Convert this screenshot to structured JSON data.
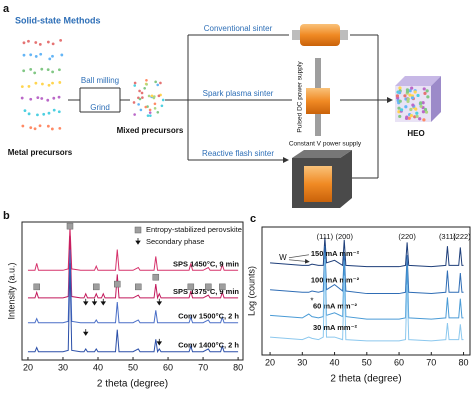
{
  "diagram": {
    "label": "a",
    "title": "Solid-state Methods",
    "metal_precursors": "Metal precursors",
    "ball_milling": "Ball milling",
    "grind": "Grind",
    "mixed_precursors": "Mixed precursors",
    "conventional": "Conventional sinter",
    "spark": "Spark plasma sinter",
    "reactive": "Reactive flash sinter",
    "pulsed_dc": "Pulsed DC power supply",
    "constant_v": "Constant V power supply",
    "product": "HEO"
  },
  "chart_data": [
    {
      "type": "line",
      "panel": "b",
      "x_label": "2 theta (degree)",
      "y_label": "Intensity (a.u.)",
      "xlim": [
        18.3,
        81.4
      ],
      "xticks": [
        20,
        30,
        40,
        50,
        60,
        70,
        80
      ],
      "ylim": [
        0,
        100
      ],
      "x": [
        20,
        22,
        22.5,
        23,
        30,
        31.5,
        32,
        32.5,
        35,
        36,
        36.5,
        37,
        39,
        39.5,
        40,
        41,
        41.5,
        42,
        45,
        45.5,
        46,
        50,
        51.5,
        52,
        56,
        56.5,
        57,
        57.5,
        58,
        60,
        66,
        66.5,
        67,
        70,
        71.5,
        72,
        75,
        75.5,
        76,
        80
      ],
      "series": [
        {
          "name": "SPS 1450°C, 9 min",
          "color": "#d6336c",
          "values": [
            65,
            65,
            70,
            65,
            65,
            66,
            97,
            66,
            65,
            65,
            65,
            65,
            65,
            68,
            65,
            65,
            65,
            65,
            65,
            80,
            65,
            65,
            67,
            65,
            65,
            75,
            65,
            65,
            65,
            65,
            65,
            70,
            65,
            65,
            67,
            65,
            65,
            69,
            65,
            65
          ]
        },
        {
          "name": "SPS 1375°C, 9 min",
          "color": "#c2185b",
          "values": [
            45,
            45,
            49,
            45,
            45,
            46,
            90,
            46,
            45,
            45,
            48,
            45,
            45,
            48,
            45,
            45,
            48,
            45,
            45,
            62,
            45,
            45,
            47,
            45,
            45,
            55,
            45,
            48,
            45,
            45,
            45,
            50,
            45,
            45,
            47,
            45,
            45,
            49,
            45,
            45
          ]
        },
        {
          "name": "Conv 1500°C, 2 h",
          "color": "#4a6fc7",
          "values": [
            27,
            27,
            30,
            27,
            27,
            28,
            80,
            28,
            27,
            27,
            27,
            27,
            27,
            29,
            27,
            27,
            27,
            27,
            27,
            42,
            27,
            27,
            29,
            27,
            27,
            36,
            27,
            27,
            27,
            27,
            27,
            31,
            27,
            27,
            29,
            27,
            27,
            31,
            27,
            27
          ]
        },
        {
          "name": "Conv 1400°C, 2 h",
          "color": "#2b4fa8",
          "values": [
            6,
            6,
            9,
            6,
            6,
            7,
            70,
            7,
            6,
            6,
            8,
            6,
            6,
            8,
            6,
            6,
            6,
            6,
            6,
            22,
            6,
            6,
            8,
            6,
            6,
            15,
            6,
            8,
            6,
            6,
            6,
            10,
            6,
            6,
            8,
            6,
            6,
            10,
            6,
            6
          ]
        }
      ],
      "marker_sets": [
        {
          "name": "Entropy-stabilized perovskite",
          "shape": "square",
          "color": "#9e9e9e",
          "points": [
            {
              "x": 22.5,
              "y": 53
            },
            {
              "x": 32,
              "y": 97
            },
            {
              "x": 39.5,
              "y": 53
            },
            {
              "x": 45.5,
              "y": 55
            },
            {
              "x": 51.5,
              "y": 53
            },
            {
              "x": 56.5,
              "y": 60
            },
            {
              "x": 66.5,
              "y": 53
            },
            {
              "x": 71.5,
              "y": 53
            },
            {
              "x": 75.5,
              "y": 53
            }
          ]
        },
        {
          "name": "Secondary phase",
          "shape": "arrow",
          "color": "#111111",
          "points": [
            {
              "x": 36.5,
              "y": 40
            },
            {
              "x": 39,
              "y": 40
            },
            {
              "x": 41.5,
              "y": 40
            },
            {
              "x": 57.5,
              "y": 40
            },
            {
              "x": 36.5,
              "y": 18
            },
            {
              "x": 57.5,
              "y": 11
            }
          ]
        }
      ]
    },
    {
      "type": "line",
      "panel": "c",
      "x_label": "2 theta (degree)",
      "y_label": "Log (counts)",
      "xlim": [
        17.5,
        82
      ],
      "xticks": [
        20,
        30,
        40,
        50,
        60,
        70,
        80
      ],
      "ylim": [
        0,
        100
      ],
      "x": [
        20,
        25,
        30,
        32,
        33,
        35,
        36.5,
        37,
        37.5,
        40,
        42.5,
        43,
        43.5,
        50,
        55,
        60,
        62,
        62.5,
        63,
        70,
        74.5,
        75,
        75.5,
        78.5,
        79,
        79.5,
        80
      ],
      "series": [
        {
          "name": "150 mA mm⁻²",
          "color": "#1f3f7a",
          "values": [
            72,
            71,
            70,
            70,
            71,
            70,
            70,
            92,
            72,
            74,
            70,
            90,
            70,
            69,
            69,
            69,
            70,
            88,
            70,
            69,
            70,
            85,
            70,
            70,
            84,
            70,
            70
          ]
        },
        {
          "name": "100 mA mm⁻²",
          "color": "#2f6db5",
          "values": [
            51,
            50,
            49,
            49,
            50,
            49,
            50,
            85,
            51,
            55,
            50,
            80,
            50,
            48,
            48,
            48,
            49,
            78,
            49,
            48,
            49,
            66,
            49,
            49,
            64,
            49,
            49
          ]
        },
        {
          "name": "60 mA mm⁻²",
          "color": "#4a9bd6",
          "values": [
            31,
            30,
            29,
            32,
            30,
            29,
            30,
            80,
            31,
            33,
            30,
            74,
            30,
            28,
            28,
            28,
            29,
            70,
            29,
            28,
            29,
            45,
            29,
            29,
            44,
            29,
            29
          ]
        },
        {
          "name": "30 mA mm⁻²",
          "color": "#8cc8ee",
          "values": [
            14,
            13,
            12,
            14,
            13,
            12,
            14,
            75,
            14,
            14,
            12,
            62,
            12,
            11,
            11,
            11,
            12,
            55,
            12,
            11,
            12,
            25,
            12,
            12,
            24,
            12,
            12
          ]
        }
      ],
      "peak_labels": [
        {
          "label": "(111)",
          "x": 37
        },
        {
          "label": "(200)",
          "x": 43
        },
        {
          "label": "(220)",
          "x": 62.5
        },
        {
          "label": "(311)",
          "x": 75
        },
        {
          "label": "(222)",
          "x": 79.5
        }
      ],
      "annotations": [
        {
          "text": "W",
          "x": 24,
          "y": 76
        },
        {
          "text": "*",
          "x": 33,
          "y": 42
        }
      ]
    }
  ]
}
